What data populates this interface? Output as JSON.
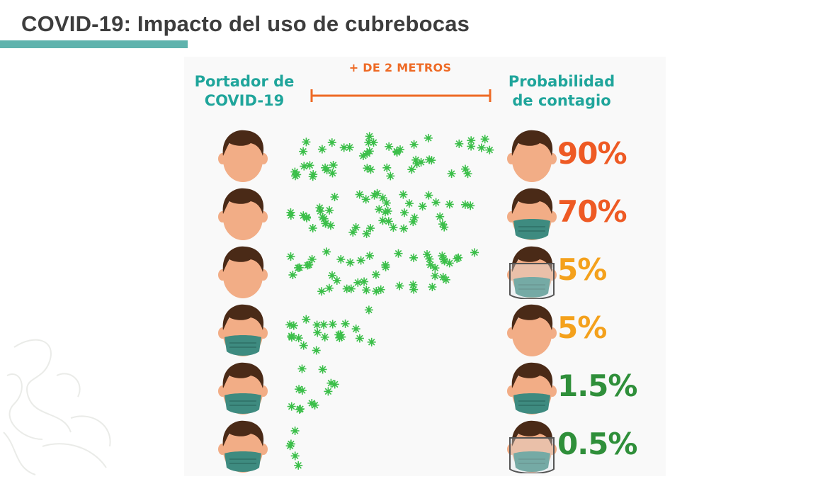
{
  "slide": {
    "title": "COVID-19: Impacto del uso de cubrebocas"
  },
  "infographic": {
    "header_left": "Portador de COVID-19",
    "header_right": "Probabilidad de contagio",
    "distance_label": "+ DE 2 METROS",
    "rows": [
      {
        "carrier_mask": false,
        "receiver_mask": false,
        "receiver_shield": false,
        "virus_density": 1.0,
        "probability": "90%",
        "color": "#ee5a24"
      },
      {
        "carrier_mask": false,
        "receiver_mask": true,
        "receiver_shield": false,
        "virus_density": 0.95,
        "probability": "70%",
        "color": "#ee5a24"
      },
      {
        "carrier_mask": false,
        "receiver_mask": true,
        "receiver_shield": true,
        "virus_density": 0.95,
        "probability": "5%",
        "color": "#f4a11c"
      },
      {
        "carrier_mask": true,
        "receiver_mask": false,
        "receiver_shield": false,
        "virus_density": 0.45,
        "probability": "5%",
        "color": "#f4a11c"
      },
      {
        "carrier_mask": true,
        "receiver_mask": true,
        "receiver_shield": false,
        "virus_density": 0.25,
        "probability": "1.5%",
        "color": "#2f8f3a"
      },
      {
        "carrier_mask": true,
        "receiver_mask": true,
        "receiver_shield": true,
        "virus_density": 0.1,
        "probability": "0.5%",
        "color": "#2f8f3a"
      }
    ]
  },
  "colors": {
    "accent_teal": "#5fb3ad",
    "header_teal": "#1fa59b",
    "distance_orange": "#ee6a25",
    "virus_green": "#3cbf4a",
    "skin": "#f2ad86",
    "hair": "#4a2a17",
    "mask": "#3e8b80"
  }
}
